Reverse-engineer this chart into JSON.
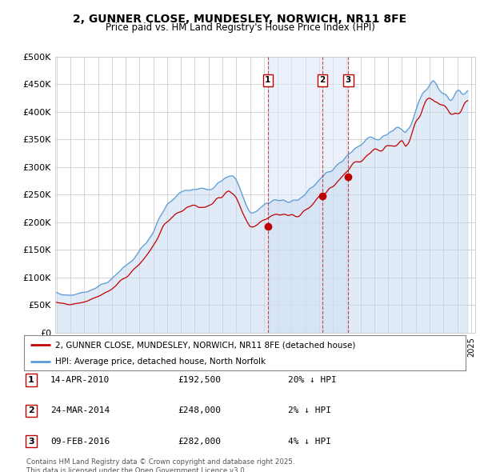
{
  "title": "2, GUNNER CLOSE, MUNDESLEY, NORWICH, NR11 8FE",
  "subtitle": "Price paid vs. HM Land Registry's House Price Index (HPI)",
  "ylim": [
    0,
    500000
  ],
  "yticks": [
    0,
    50000,
    100000,
    150000,
    200000,
    250000,
    300000,
    350000,
    400000,
    450000,
    500000
  ],
  "ytick_labels": [
    "£0",
    "£50K",
    "£100K",
    "£150K",
    "£200K",
    "£250K",
    "£300K",
    "£350K",
    "£400K",
    "£450K",
    "£500K"
  ],
  "background_color": "#ffffff",
  "plot_bg_color": "#ffffff",
  "grid_color": "#cccccc",
  "legend_label_red": "2, GUNNER CLOSE, MUNDESLEY, NORWICH, NR11 8FE (detached house)",
  "legend_label_blue": "HPI: Average price, detached house, North Norfolk",
  "footer": "Contains HM Land Registry data © Crown copyright and database right 2025.\nThis data is licensed under the Open Government Licence v3.0.",
  "sale_markers": [
    {
      "label": "1",
      "date_str": "14-APR-2010",
      "price": 192500,
      "pct": "20%",
      "x": 2010.29
    },
    {
      "label": "2",
      "date_str": "24-MAR-2014",
      "price": 248000,
      "pct": "2%",
      "x": 2014.23
    },
    {
      "label": "3",
      "date_str": "09-FEB-2016",
      "price": 282000,
      "pct": "4%",
      "x": 2016.11
    }
  ],
  "hpi_line_color": "#5b9bd5",
  "hpi_fill_color": "#c5d9f1",
  "price_line_color": "#c00000",
  "marker_color": "#c00000",
  "vline_color": "#c00000",
  "shade_color": "#dce9f7",
  "xlim_left": 1994.9,
  "xlim_right": 2025.3
}
